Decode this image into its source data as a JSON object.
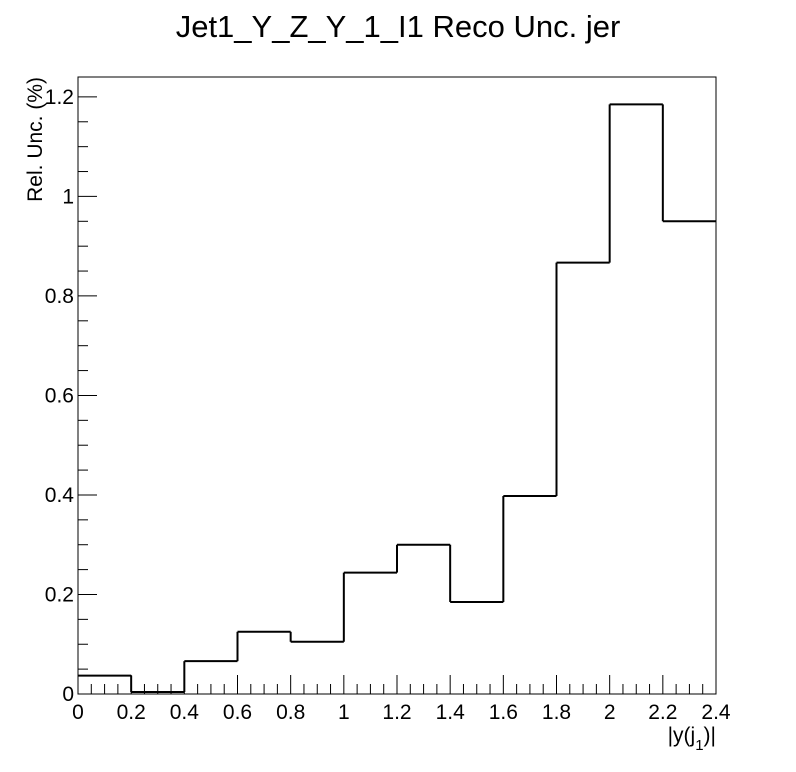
{
  "chart_data": {
    "type": "bar",
    "style": "step-histogram",
    "title": "Jet1_Y_Z_Y_1_I1 Reco Unc. jer",
    "xlabel": {
      "main": "|y(j",
      "sub": "1",
      "end": ")|"
    },
    "ylabel": "Rel. Unc. (%)",
    "x_ticks": [
      "0",
      "0.2",
      "0.4",
      "0.6",
      "0.8",
      "1",
      "1.2",
      "1.4",
      "1.6",
      "1.8",
      "2",
      "2.2",
      "2.4"
    ],
    "y_ticks": [
      "0",
      "0.2",
      "0.4",
      "0.6",
      "0.8",
      "1",
      "1.2"
    ],
    "xlim": [
      0,
      2.4
    ],
    "ylim": [
      0,
      1.24
    ],
    "bin_edges": [
      0,
      0.2,
      0.4,
      0.6,
      0.8,
      1.0,
      1.2,
      1.4,
      1.6,
      1.8,
      2.0,
      2.2,
      2.4
    ],
    "values": [
      0.037,
      0.004,
      0.066,
      0.125,
      0.105,
      0.244,
      0.3,
      0.185,
      0.398,
      0.867,
      1.185,
      0.95
    ],
    "line_color": "#000000",
    "grid": false,
    "legend": "none"
  }
}
